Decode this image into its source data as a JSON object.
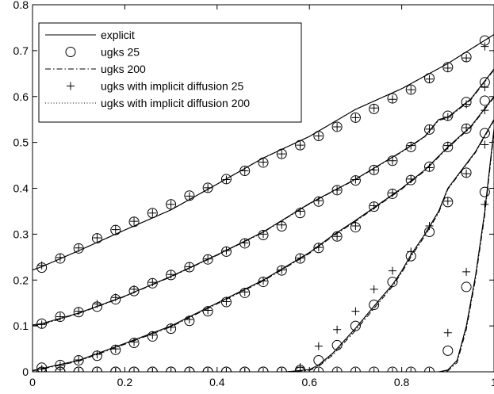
{
  "chart_data": {
    "type": "line",
    "title": "",
    "xlabel": "",
    "ylabel": "",
    "xlim": [
      0,
      1
    ],
    "ylim": [
      0,
      0.8
    ],
    "xticks": [
      0,
      0.2,
      0.4,
      0.6,
      0.8,
      1
    ],
    "xtick_labels": [
      "0",
      "0.2",
      "0.4",
      "0.6",
      "0.8",
      "1"
    ],
    "yticks": [
      0,
      0.1,
      0.2,
      0.3,
      0.4,
      0.5,
      0.6,
      0.7,
      0.8
    ],
    "ytick_labels": [
      "0",
      "0.1",
      "0.2",
      "0.3",
      "0.4",
      "0.5",
      "0.6",
      "0.7",
      "0.8"
    ],
    "grid": false,
    "legend_position": "top-left",
    "legend": [
      {
        "label": "explicit",
        "style": "solid"
      },
      {
        "label": "ugks 25",
        "style": "circle"
      },
      {
        "label": "ugks 200",
        "style": "dashdot"
      },
      {
        "label": "ugks with implicit diffusion 25",
        "style": "plus"
      },
      {
        "label": "ugks with implicit diffusion 200",
        "style": "dotted"
      }
    ],
    "curves": [
      {
        "line_x": [
          0,
          0.02,
          0.1,
          0.2,
          0.3,
          0.4,
          0.5,
          0.6,
          0.7,
          0.8,
          0.9,
          1.0
        ],
        "explicit": [
          0.222,
          0.229,
          0.264,
          0.309,
          0.353,
          0.409,
          0.466,
          0.513,
          0.572,
          0.617,
          0.672,
          0.735
        ],
        "ugks200": [
          0.222,
          0.229,
          0.264,
          0.309,
          0.353,
          0.409,
          0.466,
          0.513,
          0.572,
          0.617,
          0.672,
          0.735
        ],
        "ugks_implicit200": [
          0.222,
          0.229,
          0.264,
          0.309,
          0.353,
          0.409,
          0.466,
          0.513,
          0.572,
          0.617,
          0.672,
          0.735
        ],
        "marker_x": [
          0.02,
          0.06,
          0.1,
          0.14,
          0.18,
          0.22,
          0.26,
          0.3,
          0.34,
          0.38,
          0.42,
          0.46,
          0.5,
          0.54,
          0.58,
          0.62,
          0.66,
          0.7,
          0.74,
          0.78,
          0.82,
          0.86,
          0.9,
          0.94,
          0.98
        ],
        "ugks25": [
          0.227,
          0.247,
          0.269,
          0.291,
          0.309,
          0.327,
          0.346,
          0.365,
          0.384,
          0.401,
          0.42,
          0.438,
          0.456,
          0.475,
          0.494,
          0.514,
          0.534,
          0.554,
          0.573,
          0.596,
          0.615,
          0.64,
          0.664,
          0.686,
          0.722
        ],
        "ugks_implicit25": [
          0.232,
          0.249,
          0.27,
          0.292,
          0.31,
          0.328,
          0.346,
          0.365,
          0.383,
          0.401,
          0.419,
          0.438,
          0.457,
          0.475,
          0.494,
          0.514,
          0.534,
          0.554,
          0.575,
          0.594,
          0.615,
          0.638,
          0.662,
          0.684,
          0.709
        ]
      },
      {
        "line_x": [
          0,
          0.02,
          0.1,
          0.2,
          0.3,
          0.4,
          0.5,
          0.55,
          0.6,
          0.7,
          0.8,
          0.85,
          0.88,
          0.9,
          0.95,
          1.0
        ],
        "explicit": [
          0.102,
          0.105,
          0.128,
          0.165,
          0.208,
          0.255,
          0.305,
          0.336,
          0.367,
          0.42,
          0.48,
          0.513,
          0.55,
          0.555,
          0.595,
          0.66
        ],
        "ugks200": [
          0.1,
          0.103,
          0.127,
          0.164,
          0.207,
          0.254,
          0.304,
          0.335,
          0.366,
          0.419,
          0.479,
          0.512,
          0.548,
          0.553,
          0.593,
          0.658
        ],
        "ugks_implicit200": [
          0.101,
          0.104,
          0.128,
          0.165,
          0.207,
          0.254,
          0.304,
          0.335,
          0.366,
          0.42,
          0.48,
          0.512,
          0.549,
          0.554,
          0.594,
          0.659
        ],
        "marker_x": [
          0.02,
          0.06,
          0.1,
          0.14,
          0.18,
          0.22,
          0.26,
          0.3,
          0.34,
          0.38,
          0.42,
          0.46,
          0.5,
          0.54,
          0.58,
          0.62,
          0.66,
          0.7,
          0.74,
          0.78,
          0.82,
          0.86,
          0.9,
          0.94,
          0.98
        ],
        "ugks25": [
          0.105,
          0.12,
          0.13,
          0.142,
          0.158,
          0.176,
          0.193,
          0.211,
          0.228,
          0.245,
          0.262,
          0.28,
          0.298,
          0.317,
          0.346,
          0.371,
          0.396,
          0.417,
          0.44,
          0.46,
          0.49,
          0.528,
          0.558,
          0.588,
          0.631
        ],
        "ugks_implicit25": [
          0.103,
          0.12,
          0.132,
          0.148,
          0.162,
          0.18,
          0.195,
          0.212,
          0.229,
          0.246,
          0.264,
          0.281,
          0.3,
          0.32,
          0.35,
          0.373,
          0.396,
          0.419,
          0.44,
          0.46,
          0.493,
          0.529,
          0.555,
          0.583,
          0.62
        ]
      },
      {
        "line_x": [
          0,
          0.02,
          0.1,
          0.2,
          0.3,
          0.4,
          0.5,
          0.6,
          0.65,
          0.7,
          0.8,
          0.85,
          0.88,
          0.9,
          0.95,
          1.0
        ],
        "explicit": [
          0.003,
          0.007,
          0.025,
          0.062,
          0.1,
          0.15,
          0.2,
          0.26,
          0.297,
          0.33,
          0.4,
          0.44,
          0.47,
          0.49,
          0.535,
          0.6
        ],
        "ugks200": [
          0.002,
          0.006,
          0.023,
          0.06,
          0.098,
          0.148,
          0.198,
          0.258,
          0.295,
          0.328,
          0.398,
          0.438,
          0.468,
          0.488,
          0.533,
          0.598
        ],
        "ugks_implicit200": [
          0.003,
          0.007,
          0.024,
          0.061,
          0.099,
          0.149,
          0.199,
          0.259,
          0.296,
          0.329,
          0.399,
          0.439,
          0.469,
          0.489,
          0.534,
          0.599
        ],
        "marker_x": [
          0.02,
          0.06,
          0.1,
          0.14,
          0.18,
          0.22,
          0.26,
          0.3,
          0.34,
          0.38,
          0.42,
          0.46,
          0.5,
          0.54,
          0.58,
          0.62,
          0.66,
          0.7,
          0.74,
          0.78,
          0.82,
          0.86,
          0.9,
          0.94,
          0.98
        ],
        "ugks25": [
          0.009,
          0.015,
          0.025,
          0.035,
          0.048,
          0.063,
          0.077,
          0.094,
          0.111,
          0.132,
          0.152,
          0.172,
          0.196,
          0.221,
          0.247,
          0.27,
          0.295,
          0.315,
          0.36,
          0.388,
          0.418,
          0.447,
          0.49,
          0.53,
          0.591
        ],
        "ugks_implicit25": [
          0.006,
          0.014,
          0.026,
          0.038,
          0.05,
          0.065,
          0.08,
          0.097,
          0.114,
          0.134,
          0.153,
          0.174,
          0.198,
          0.222,
          0.248,
          0.271,
          0.295,
          0.318,
          0.362,
          0.39,
          0.42,
          0.445,
          0.493,
          0.532,
          0.57
        ]
      },
      {
        "line_x": [
          0,
          0.55,
          0.6,
          0.62,
          0.65,
          0.7,
          0.75,
          0.78,
          0.8,
          0.82,
          0.85,
          0.88,
          0.9,
          0.93,
          0.96,
          1.0
        ],
        "explicit": [
          0,
          0,
          0.005,
          0.015,
          0.04,
          0.095,
          0.155,
          0.19,
          0.22,
          0.255,
          0.3,
          0.35,
          0.4,
          0.44,
          0.48,
          0.55
        ],
        "ugks200": [
          0,
          0,
          0.003,
          0.012,
          0.036,
          0.09,
          0.15,
          0.186,
          0.216,
          0.25,
          0.296,
          0.346,
          0.398,
          0.438,
          0.478,
          0.548
        ],
        "ugks_implicit200": [
          0,
          0,
          0.004,
          0.014,
          0.038,
          0.093,
          0.153,
          0.188,
          0.218,
          0.253,
          0.298,
          0.348,
          0.399,
          0.439,
          0.479,
          0.549
        ],
        "marker_x": [
          0.02,
          0.06,
          0.1,
          0.14,
          0.18,
          0.22,
          0.26,
          0.3,
          0.34,
          0.38,
          0.42,
          0.46,
          0.5,
          0.54,
          0.58,
          0.62,
          0.66,
          0.7,
          0.74,
          0.78,
          0.82,
          0.86,
          0.9,
          0.94,
          0.98
        ],
        "ugks25": [
          0,
          0,
          0,
          0,
          0,
          0,
          0,
          0,
          0,
          0,
          0,
          0,
          0,
          0,
          0.004,
          0.025,
          0.058,
          0.1,
          0.146,
          0.196,
          0.252,
          0.305,
          0.37,
          0.434,
          0.52
        ],
        "ugks_implicit25": [
          0,
          0,
          0,
          0,
          0,
          0,
          0,
          0,
          0,
          0,
          0,
          0,
          0,
          0,
          0.01,
          0.056,
          0.092,
          0.132,
          0.18,
          0.22,
          0.262,
          0.318,
          0.372,
          0.432,
          0.495
        ]
      },
      {
        "line_x": [
          0,
          0.88,
          0.9,
          0.92,
          0.94,
          0.96,
          0.98,
          1.0
        ],
        "explicit": [
          0,
          0,
          0.004,
          0.025,
          0.1,
          0.21,
          0.35,
          0.53
        ],
        "ugks200": [
          0,
          0,
          0.002,
          0.02,
          0.092,
          0.202,
          0.342,
          0.522
        ],
        "ugks_implicit200": [
          0,
          0,
          0.003,
          0.023,
          0.096,
          0.206,
          0.346,
          0.526
        ],
        "marker_x": [
          0.02,
          0.06,
          0.1,
          0.14,
          0.18,
          0.22,
          0.26,
          0.3,
          0.34,
          0.38,
          0.42,
          0.46,
          0.5,
          0.54,
          0.58,
          0.62,
          0.66,
          0.7,
          0.74,
          0.78,
          0.82,
          0.86,
          0.9,
          0.94,
          0.98
        ],
        "ugks25": [
          0,
          0,
          0,
          0,
          0,
          0,
          0,
          0,
          0,
          0,
          0,
          0,
          0,
          0,
          0,
          0,
          0,
          0,
          0,
          0,
          0,
          0,
          0.046,
          0.185,
          0.392
        ],
        "ugks_implicit25": [
          0,
          0,
          0,
          0,
          0,
          0,
          0,
          0,
          0,
          0,
          0,
          0,
          0,
          0,
          0,
          0,
          0,
          0,
          0,
          0,
          0,
          0,
          0.085,
          0.218,
          0.365
        ]
      }
    ]
  }
}
